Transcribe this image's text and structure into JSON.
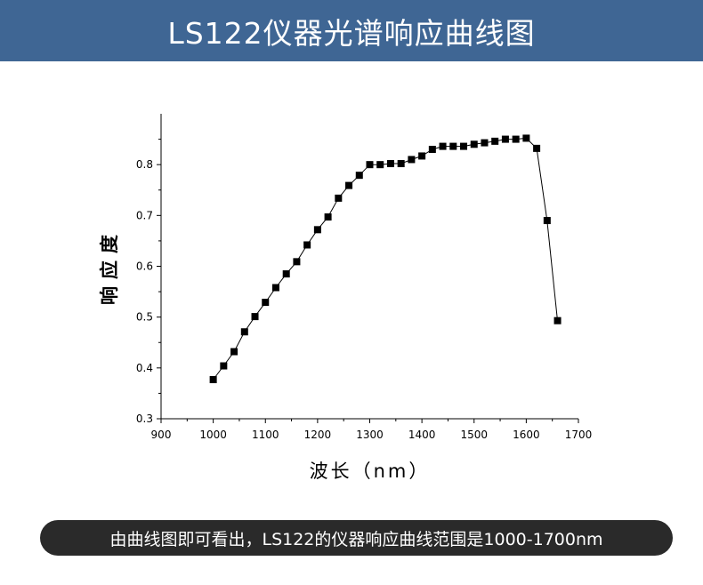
{
  "header": {
    "title": "LS122仪器光谱响应曲线图"
  },
  "caption": {
    "text": "由曲线图即可看出，LS122的仪器响应曲线范围是1000-1700nm"
  },
  "chart_data": {
    "type": "line",
    "title": "",
    "xlabel": "波长（nm）",
    "ylabel": "响应度",
    "xlim": [
      900,
      1700
    ],
    "ylim": [
      0.3,
      0.9
    ],
    "xticks": [
      900,
      1000,
      1100,
      1200,
      1300,
      1400,
      1500,
      1600,
      1700
    ],
    "yticks": [
      0.3,
      0.4,
      0.5,
      0.6,
      0.7,
      0.8
    ],
    "marker": "square",
    "series": [
      {
        "x": [
          1000,
          1020,
          1040,
          1060,
          1080,
          1100,
          1120,
          1140,
          1160,
          1180,
          1200,
          1220,
          1240,
          1260,
          1280,
          1300,
          1320,
          1340,
          1360,
          1380,
          1400,
          1420,
          1440,
          1460,
          1480,
          1500,
          1520,
          1540,
          1560,
          1580,
          1600,
          1620,
          1640,
          1660
        ],
        "y": [
          0.377,
          0.404,
          0.432,
          0.471,
          0.501,
          0.529,
          0.558,
          0.585,
          0.609,
          0.642,
          0.672,
          0.697,
          0.734,
          0.759,
          0.779,
          0.8,
          0.8,
          0.802,
          0.802,
          0.81,
          0.817,
          0.83,
          0.836,
          0.836,
          0.836,
          0.84,
          0.843,
          0.846,
          0.85,
          0.85,
          0.852,
          0.832,
          0.69,
          0.493
        ]
      }
    ]
  }
}
